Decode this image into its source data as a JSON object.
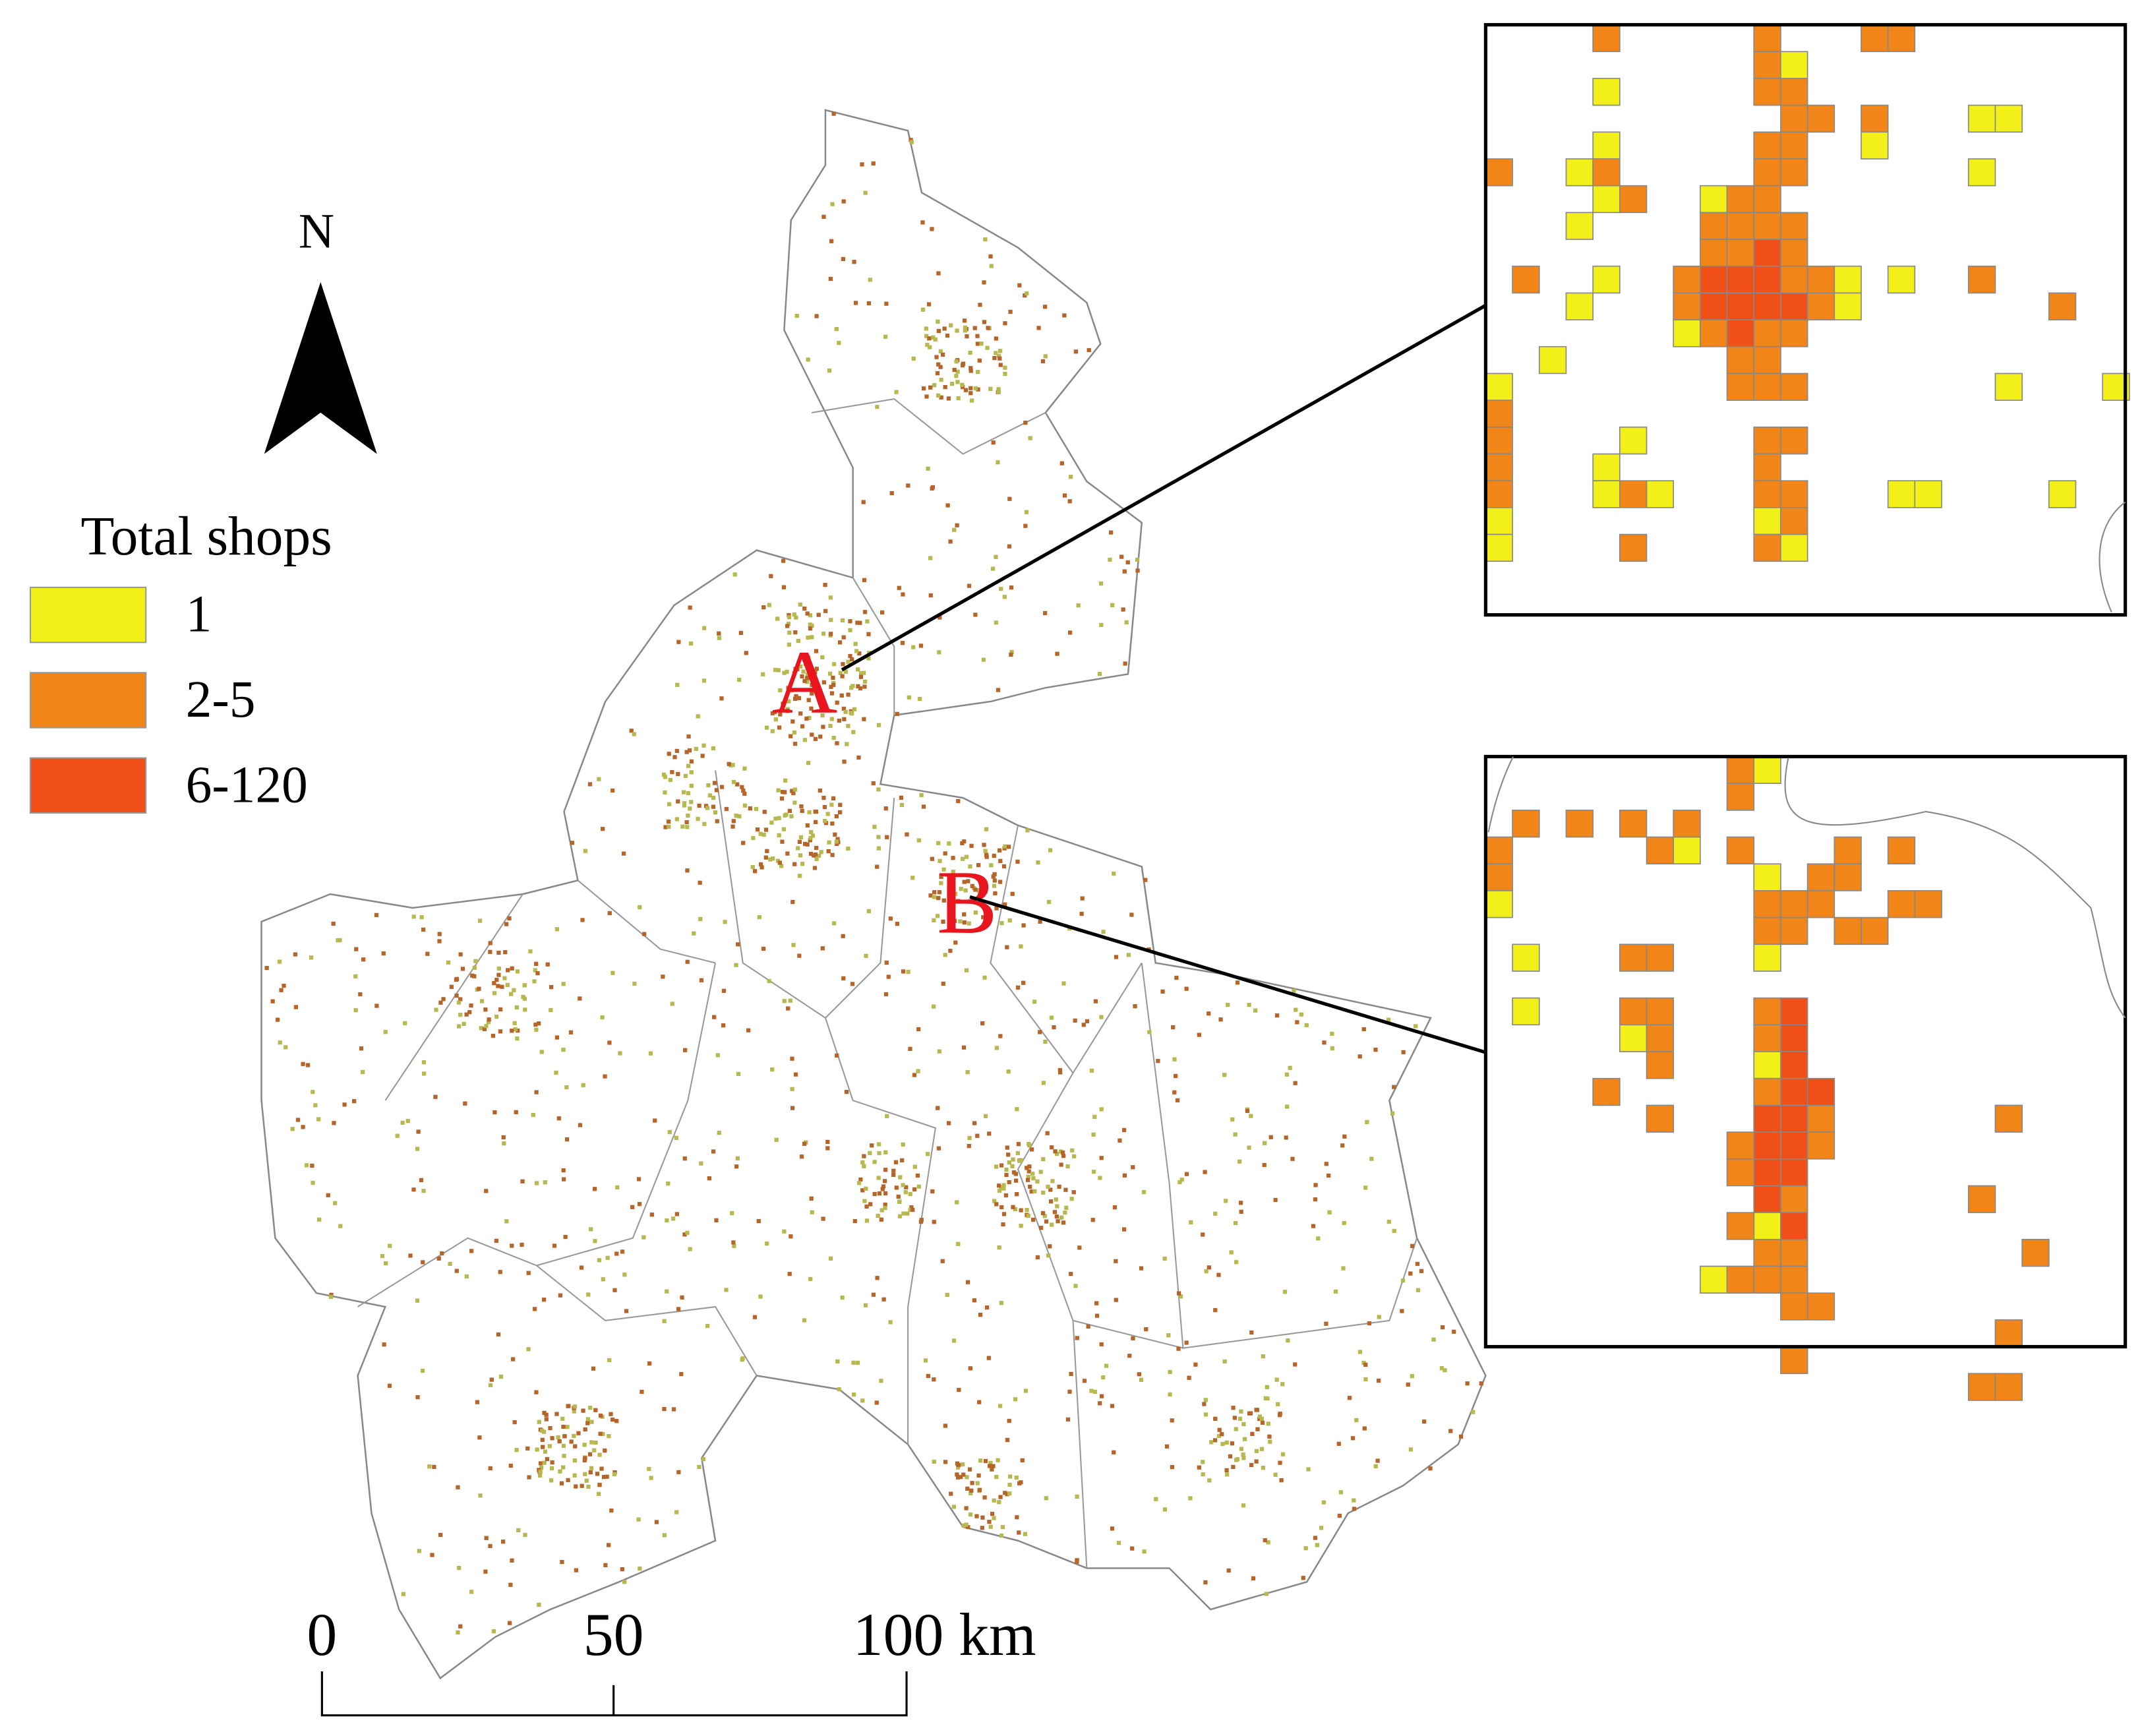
{
  "map": {
    "north_label": "N",
    "legend": {
      "title": "Total shops",
      "items": [
        {
          "label": "1",
          "color": "#f2f018"
        },
        {
          "label": "2-5",
          "color": "#f28518"
        },
        {
          "label": "6-120",
          "color": "#f05018"
        }
      ]
    },
    "markers": [
      {
        "label": "A"
      },
      {
        "label": "B"
      }
    ],
    "scale_bar": {
      "labels": [
        "0",
        "50",
        "100 km"
      ]
    }
  }
}
